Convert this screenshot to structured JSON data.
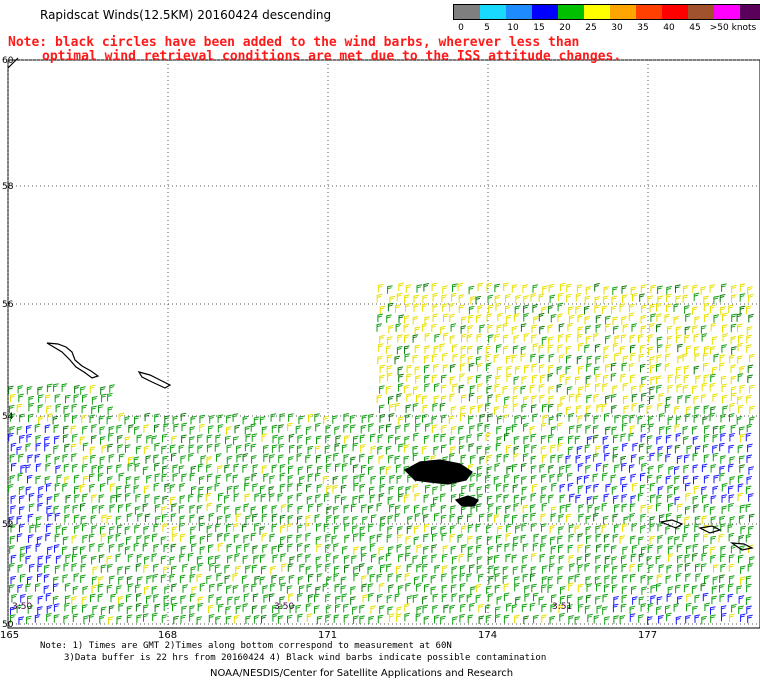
{
  "title": "Rapidscat Winds(12.5KM) 20160424 descending",
  "note_line1": "Note: black circles have been added to the wind barbs, wherever less than",
  "note_line2": "optimal wind retrieval conditions are met due to the ISS attitude changes.",
  "legend": {
    "labels": [
      "0",
      "5",
      "10",
      "15",
      "20",
      "25",
      "30",
      "35",
      "40",
      "45",
      ">50 knots"
    ],
    "colors": [
      "#7f7f7f",
      "#19d9ff",
      "#1e8cff",
      "#0000ff",
      "#00c000",
      "#ffff00",
      "#ffa500",
      "#ff4000",
      "#ff0000",
      "#a0522d",
      "#ff00ff",
      "#5a005a"
    ]
  },
  "map": {
    "lat_labels": [
      "60",
      "58",
      "56",
      "54",
      "52",
      "50"
    ],
    "lon_labels": [
      "165",
      "168",
      "171",
      "174",
      "177"
    ],
    "time_labels": [
      "3:50",
      "3:50",
      "3:51"
    ]
  },
  "footer_line1": "Note: 1) Times are GMT 2)Times along bottom correspond to measurement at 60N",
  "footer_line2": "3)Data buffer is 22 hrs from 20160424 4) Black wind barbs indicate possible contamination",
  "credit": "NOAA/NESDIS/Center for Satellite Applications and Research"
}
